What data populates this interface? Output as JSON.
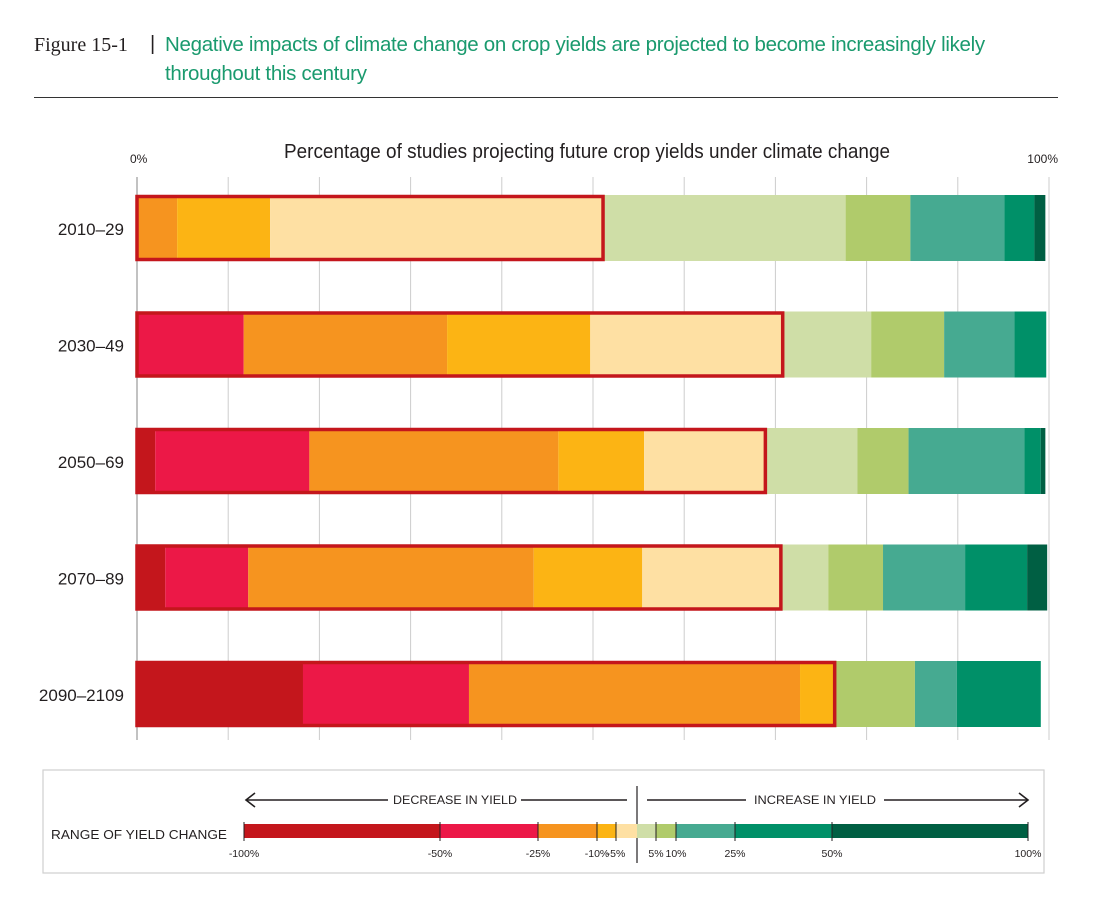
{
  "figure": {
    "number": "Figure 15-1",
    "separator": "|",
    "title": "Negative impacts of climate change on crop yields are projected to become increasingly likely throughout this century"
  },
  "chart_data": {
    "type": "bar",
    "orientation": "horizontal-stacked-100",
    "title": "Percentage of studies projecting future crop yields under climate change",
    "x_axis": {
      "min_label": "0%",
      "max_label": "100%",
      "range": [
        0,
        100
      ],
      "unit": "%"
    },
    "grid": true,
    "categories": [
      "2010–29",
      "2030–49",
      "2050–69",
      "2070–89",
      "2090–2109"
    ],
    "segment_order": [
      "-100% to -50%",
      "-50% to -25%",
      "-25% to -10%",
      "-10% to -5%",
      "-5% to 0%",
      "0% to 5%",
      "5% to 10%",
      "10% to 25%",
      "25% to 50%",
      "50% to 100%"
    ],
    "segment_colors": [
      "#c4161c",
      "#ec1847",
      "#f6941f",
      "#fcb414",
      "#fee0a3",
      "#cfdea7",
      "#b0cb6b",
      "#46aa91",
      "#009068",
      "#005f43"
    ],
    "series_values": [
      [
        0,
        0,
        4.4,
        10.2,
        36.5,
        26.6,
        7.1,
        10.3,
        3.3,
        1.2
      ],
      [
        0,
        11.7,
        22.3,
        15.7,
        21.1,
        9.7,
        8.0,
        7.7,
        3.5,
        0
      ],
      [
        2.0,
        16.9,
        27.3,
        9.4,
        13.3,
        10.1,
        5.6,
        12.7,
        1.8,
        0.5
      ],
      [
        3.1,
        9.1,
        31.3,
        11.9,
        15.2,
        5.2,
        6.0,
        9.0,
        6.8,
        2.2
      ],
      [
        18.2,
        18.2,
        36.3,
        3.8,
        0,
        0,
        8.8,
        4.6,
        9.2,
        0
      ]
    ],
    "negative_share_outline_color": "#c4161c",
    "legend": {
      "decrease_label": "DECREASE IN YIELD",
      "increase_label": "INCREASE IN YIELD",
      "range_label": "RANGE OF YIELD CHANGE",
      "tick_labels": [
        "-100%",
        "-50%",
        "-25%",
        "-10%",
        "-5%",
        "5%",
        "10%",
        "25%",
        "50%",
        "100%"
      ]
    }
  }
}
